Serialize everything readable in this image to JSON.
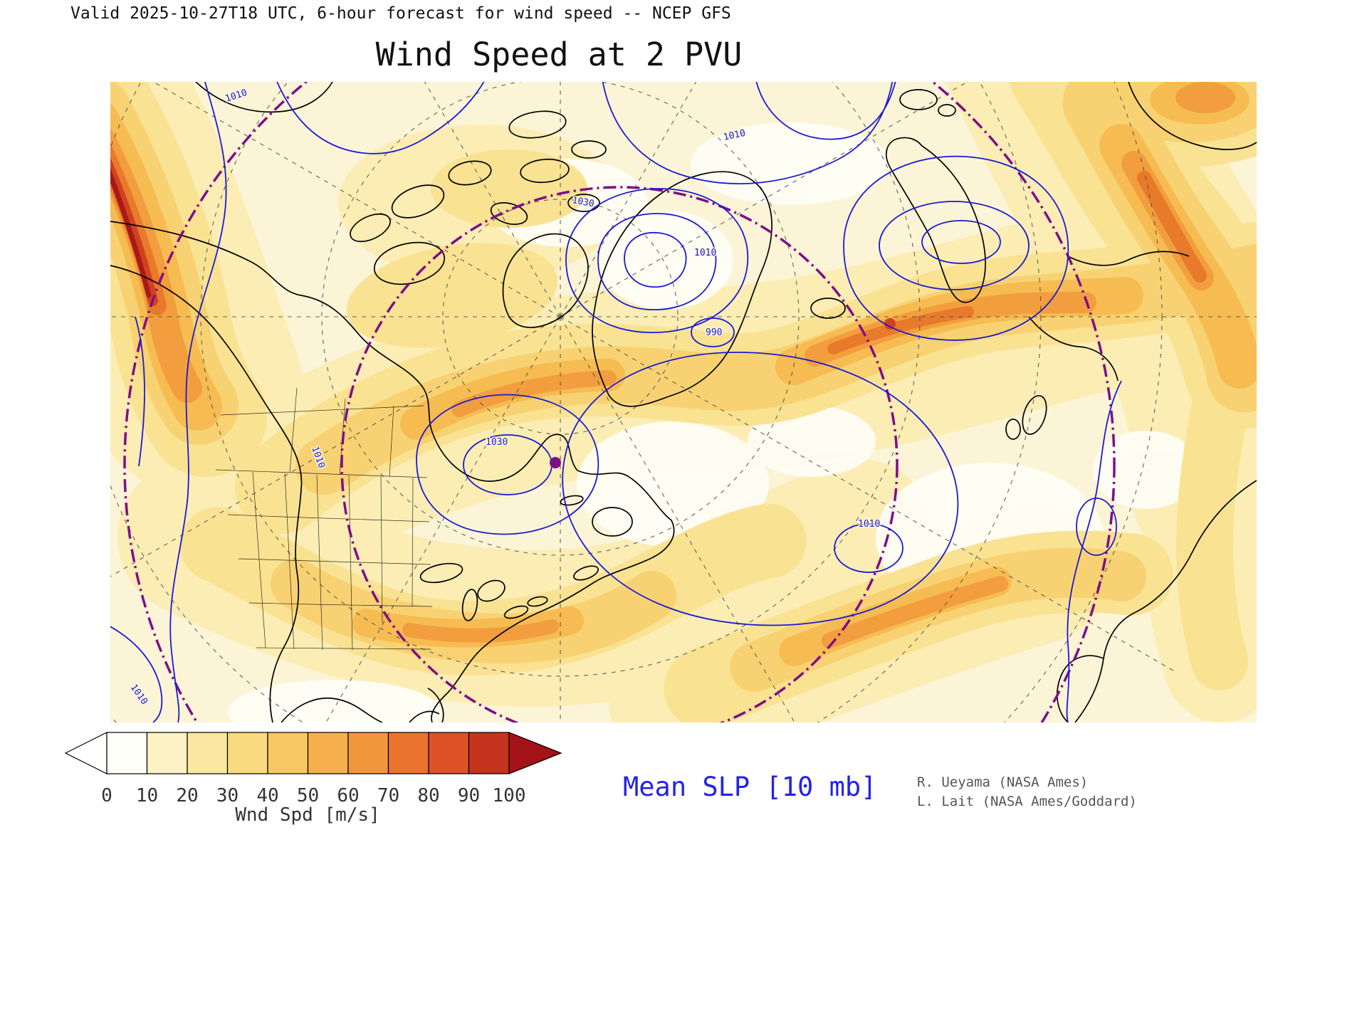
{
  "header": {
    "valid_line": "Valid 2025-10-27T18 UTC, 6-hour forecast for wind speed -- NCEP GFS",
    "title": "Wind Speed at 2 PVU"
  },
  "map": {
    "slp_contour_color": "#1a1ad4",
    "coastline_color": "#000000",
    "graticule_color": "#4a4a4a",
    "vortex_edge_color": "#7c0f8a",
    "marker_color": "#7c0f8a",
    "slp_labels": [
      {
        "text": "1010"
      },
      {
        "text": "1010"
      },
      {
        "text": "1030"
      },
      {
        "text": "1010"
      },
      {
        "text": "990"
      },
      {
        "text": "1030"
      },
      {
        "text": "1010"
      },
      {
        "text": "1010"
      },
      {
        "text": "1010"
      }
    ]
  },
  "colorbar": {
    "ticks": [
      "0",
      "10",
      "20",
      "30",
      "40",
      "50",
      "60",
      "70",
      "80",
      "90",
      "100"
    ],
    "cell_colors": [
      "#fffffa",
      "#fdf2c4",
      "#fbe79f",
      "#f9da7e",
      "#f7c763",
      "#f5b04c",
      "#f2963c",
      "#ea742e",
      "#dd5226",
      "#c6331f"
    ],
    "left_arrow_color": "#ffffff",
    "right_arrow_color": "#a31318",
    "units_label": "Wnd Spd [m/s]"
  },
  "footer": {
    "slp_caption": "Mean SLP [10 mb]",
    "slp_caption_color": "#2323e8",
    "credit_line1": "R. Ueyama (NASA Ames)",
    "credit_line2": "L. Lait (NASA Ames/Goddard)"
  },
  "chart_data": {
    "type": "heatmap",
    "title": "Wind Speed at 2 PVU",
    "subtitle": "Valid 2025-10-27T18 UTC, 6-hour forecast for wind speed -- NCEP GFS",
    "field": "wind speed on the 2 PVU surface",
    "units": "m/s",
    "colorbar_levels": [
      0,
      10,
      20,
      30,
      40,
      50,
      60,
      70,
      80,
      90,
      100
    ],
    "colorbar_colors": [
      "#fffffa",
      "#fdf2c4",
      "#fbe79f",
      "#f9da7e",
      "#f7c763",
      "#f5b04c",
      "#f2963c",
      "#ea742e",
      "#dd5226",
      "#c6331f"
    ],
    "overlay_contours": {
      "name": "Mean SLP",
      "caption": "Mean SLP [10 mb]",
      "labeled_values": [
        990,
        1010,
        1030
      ],
      "color": "#1a1ad4"
    },
    "credits": [
      "R. Ueyama (NASA Ames)",
      "L. Lait (NASA Ames/Goddard)"
    ]
  }
}
